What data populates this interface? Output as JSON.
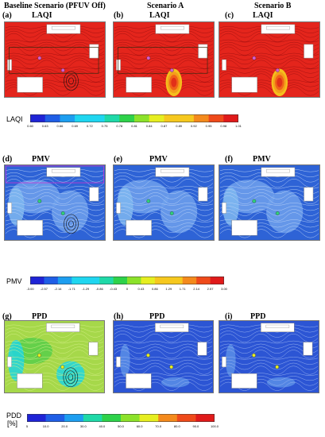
{
  "columns": {
    "baseline": "Baseline Scenario (PFUV Off)",
    "a": "Scenario A",
    "b": "Scenario B"
  },
  "panels": [
    {
      "letter": "(a)",
      "metric": "LAQI",
      "scheme": "laqi",
      "variant": "baseline"
    },
    {
      "letter": "(b)",
      "metric": "LAQI",
      "scheme": "laqi",
      "variant": "a"
    },
    {
      "letter": "(c)",
      "metric": "LAQI",
      "scheme": "laqi",
      "variant": "b"
    },
    {
      "letter": "(d)",
      "metric": "PMV",
      "scheme": "pmv",
      "variant": "baseline"
    },
    {
      "letter": "(e)",
      "metric": "PMV",
      "scheme": "pmv",
      "variant": "a"
    },
    {
      "letter": "(f)",
      "metric": "PMV",
      "scheme": "pmv",
      "variant": "b"
    },
    {
      "letter": "(g)",
      "metric": "PPD",
      "scheme": "ppd",
      "variant": "baseline"
    },
    {
      "letter": "(h)",
      "metric": "PPD",
      "scheme": "ppd",
      "variant": "a"
    },
    {
      "letter": "(i)",
      "metric": "PPD",
      "scheme": "ppd",
      "variant": "b"
    }
  ],
  "legends": {
    "laqi": {
      "title": "LAQI",
      "ticks": [
        "0.60",
        "0.63",
        "0.66",
        "0.69",
        "0.72",
        "0.75",
        "0.78",
        "0.81",
        "0.84",
        "0.87",
        "0.89",
        "0.92",
        "0.95",
        "0.98",
        "1.01"
      ]
    },
    "pmv": {
      "title": "PMV",
      "ticks": [
        "-3.00",
        "-2.57",
        "-2.14",
        "-1.71",
        "-1.29",
        "-0.86",
        "-0.43",
        "0",
        "0.43",
        "0.86",
        "1.29",
        "1.71",
        "2.14",
        "2.57",
        "3.00"
      ]
    },
    "ppd": {
      "title": "PDD",
      "title_unit": "[%]",
      "ticks": [
        "5",
        "10.0",
        "20.0",
        "30.0",
        "40.0",
        "50.0",
        "60.0",
        "70.0",
        "80.0",
        "90.0",
        "100.0"
      ]
    }
  },
  "colors": {
    "laqi_field": "#e4251c",
    "laqi_lines": "#a01010",
    "pmv_field": "#2e63d6",
    "pmv_field_light": "#6fa0ec",
    "pmv_lines": "#bcd4f7",
    "ppd_field_baseline": "#a6d84a",
    "ppd_field": "#2c55d4",
    "ppd_lines": "#9fb8f2",
    "furniture": "#ffffff",
    "panel_border": "#777777",
    "magenta_outline": "#e02bd0",
    "spectrum": [
      "#1f24d6",
      "#1f5ee6",
      "#1d9ef0",
      "#1fd6f0",
      "#1fd9a8",
      "#2ed24a",
      "#8ce22a",
      "#e6ee20",
      "#f6c81e",
      "#f48a1c",
      "#ef4a1a",
      "#e01a1a"
    ]
  }
}
